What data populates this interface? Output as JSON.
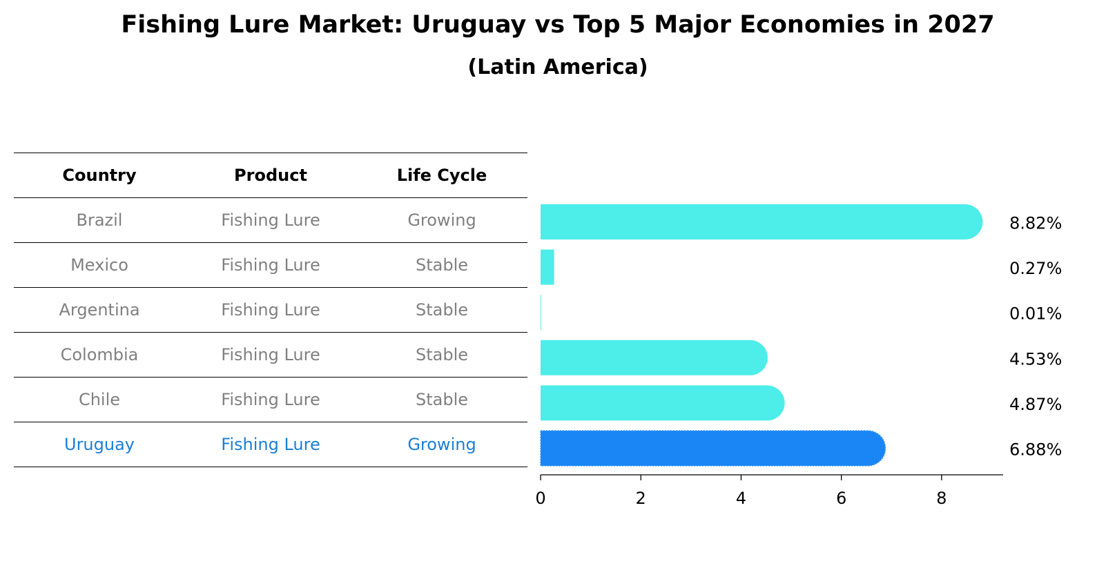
{
  "chart_data": {
    "type": "bar",
    "orientation": "horizontal",
    "title": "Fishing Lure Market: Uruguay vs Top 5 Major Economies in 2027",
    "subtitle": "(Latin America)",
    "xlabel": "",
    "ylabel": "",
    "xlim": [
      0,
      9.26
    ],
    "xticks": [
      0,
      2,
      4,
      6,
      8
    ],
    "value_suffix": "%",
    "categories": [
      "Brazil",
      "Mexico",
      "Argentina",
      "Colombia",
      "Chile",
      "Uruguay"
    ],
    "values": [
      8.82,
      0.27,
      0.01,
      4.53,
      4.87,
      6.88
    ],
    "value_labels": [
      "8.82%",
      "0.27%",
      "0.01%",
      "4.53%",
      "4.87%",
      "6.88%"
    ],
    "highlight_index": 5,
    "colors": {
      "default_bar": "#4dede9",
      "highlight_bar": "#1a85f5",
      "highlight_text": "#1a7fd8",
      "muted_text": "#808080"
    },
    "table": {
      "headers": [
        "Country",
        "Product",
        "Life Cycle"
      ],
      "rows": [
        [
          "Brazil",
          "Fishing Lure",
          "Growing"
        ],
        [
          "Mexico",
          "Fishing Lure",
          "Stable"
        ],
        [
          "Argentina",
          "Fishing Lure",
          "Stable"
        ],
        [
          "Colombia",
          "Fishing Lure",
          "Stable"
        ],
        [
          "Chile",
          "Fishing Lure",
          "Stable"
        ],
        [
          "Uruguay",
          "Fishing Lure",
          "Growing"
        ]
      ]
    }
  }
}
